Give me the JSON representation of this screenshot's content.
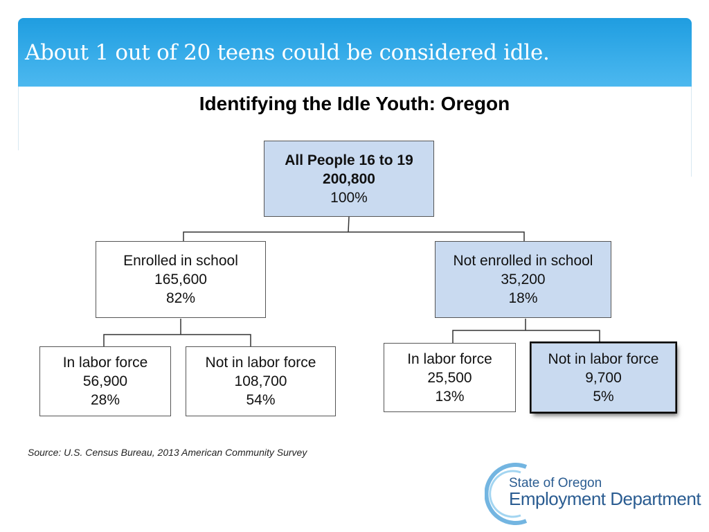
{
  "slide": {
    "title": "About 1 out of 20 teens could be considered idle.",
    "diagram_title": "Identifying the Idle Youth: Oregon",
    "source": "Source: U.S. Census Bureau, 2013 American Community Survey"
  },
  "nodes": {
    "all": {
      "label": "All People 16 to 19",
      "count": "200,800",
      "percent": "100%"
    },
    "enrolled": {
      "label": "Enrolled in school",
      "count": "165,600",
      "percent": "82%"
    },
    "not_enrolled": {
      "label": "Not enrolled in school",
      "count": "35,200",
      "percent": "18%"
    },
    "enrolled_in_lf": {
      "label": "In labor force",
      "count": "56,900",
      "percent": "28%"
    },
    "enrolled_not_lf": {
      "label": "Not in labor force",
      "count": "108,700",
      "percent": "54%"
    },
    "not_enrolled_in_lf": {
      "label": "In labor force",
      "count": "25,500",
      "percent": "13%"
    },
    "not_enrolled_not_lf": {
      "label": "Not in labor force",
      "count": "9,700",
      "percent": "5%"
    }
  },
  "logo": {
    "line1": "State of Oregon",
    "line2": "Employment Department"
  },
  "colors": {
    "header": "#2aa6e6",
    "node_highlight": "#c9daf0",
    "logo_text": "#2a5c91"
  }
}
